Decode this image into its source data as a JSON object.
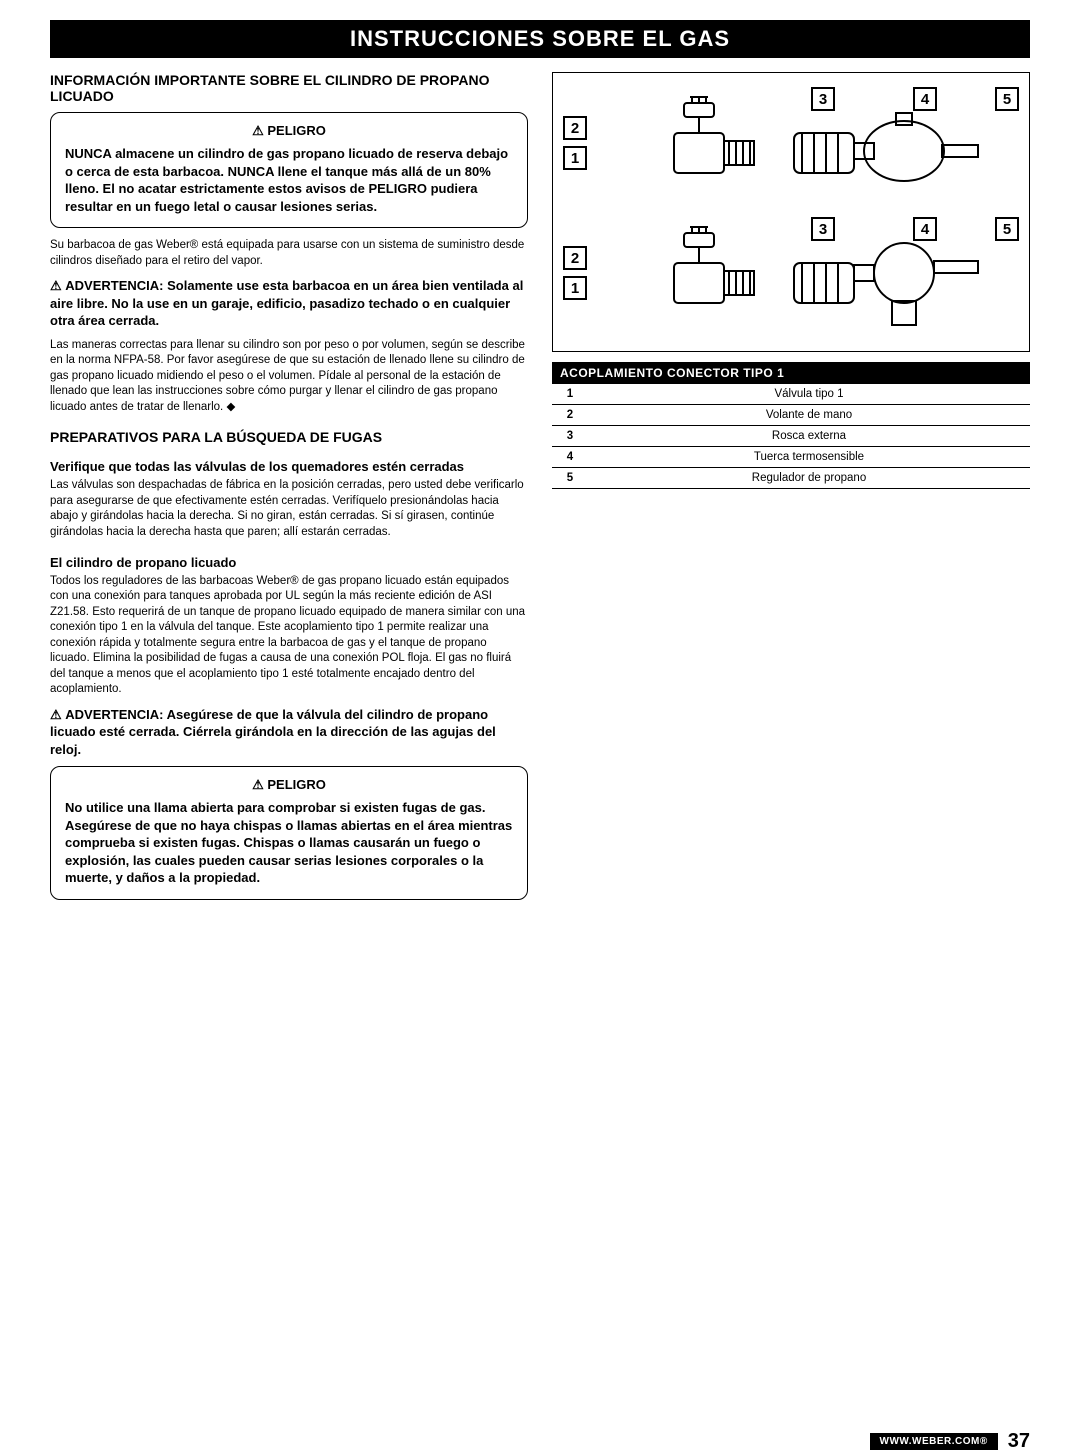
{
  "page": {
    "title": "INSTRUCCIONES SOBRE EL GAS",
    "footer_url": "WWW.WEBER.COM®",
    "page_number": "37"
  },
  "left": {
    "heading1": "INFORMACIÓN IMPORTANTE SOBRE EL CILINDRO DE PROPANO LICUADO",
    "danger1_title": "PELIGRO",
    "danger1_text": "NUNCA almacene un cilindro de gas propano licuado de reserva debajo o cerca de esta barbacoa. NUNCA llene el tanque más allá de un 80% lleno. El no acatar estrictamente estos avisos de PELIGRO pudiera resultar en un fuego letal o causar lesiones serias.",
    "para1": "Su barbacoa de gas Weber® está equipada para usarse con un sistema de suministro desde cilindros diseñado para el retiro del vapor.",
    "warn1": "ADVERTENCIA: Solamente use esta barbacoa en un área bien ventilada al aire libre. No la use en un garaje, edificio, pasadizo techado o en cualquier otra área cerrada.",
    "para2": "Las maneras correctas para llenar su cilindro son por peso o por volumen, según se describe en la norma NFPA-58. Por favor asegúrese de que su estación de llenado llene su cilindro de gas propano licuado midiendo el peso o el volumen. Pídale al personal de la estación de llenado que lean las instrucciones sobre cómo purgar y llenar el cilindro de gas propano licuado antes de tratar de llenarlo. ◆",
    "heading2": "PREPARATIVOS PARA LA BÚSQUEDA DE FUGAS",
    "sub1": "Verifique que todas las válvulas de los quemadores estén cerradas",
    "para3": "Las válvulas son despachadas de fábrica en la posición cerradas, pero usted debe verificarlo para asegurarse de que efectivamente estén cerradas. Verifíquelo presionándolas hacia abajo y girándolas hacia la derecha. Si no giran, están cerradas. Si sí girasen, continúe girándolas hacia la derecha hasta que paren; allí estarán cerradas.",
    "sub2": "El cilindro de propano licuado",
    "para4": "Todos los reguladores de las barbacoas Weber® de gas propano licuado están equipados con una conexión para tanques aprobada por UL según la más reciente edición de ASI Z21.58. Esto requerirá de un tanque de propano licuado equipado de manera similar con una conexión tipo 1 en la válvula del tanque. Este acoplamiento tipo 1 permite realizar una conexión rápida y totalmente segura entre la barbacoa de gas y el tanque de propano licuado. Elimina la posibilidad de fugas a causa de una conexión POL floja. El gas no fluirá del tanque a menos que el acoplamiento tipo 1 esté totalmente encajado dentro del acoplamiento.",
    "warn2": "ADVERTENCIA: Asegúrese de que la válvula del cilindro de propano licuado esté cerrada. Ciérrela girándola en la dirección de las agujas del reloj.",
    "danger2_title": "PELIGRO",
    "danger2_text": "No utilice una llama abierta para comprobar si existen fugas de gas. Asegúrese de que no haya chispas o llamas abiertas en el área mientras comprueba si existen fugas. Chispas o llamas causarán un fuego o explosión, las cuales pueden causar serias lesiones corporales o la muerte, y daños a la propiedad."
  },
  "right": {
    "callouts": [
      "1",
      "2",
      "3",
      "4",
      "5"
    ],
    "table_title": "ACOPLAMIENTO CONECTOR TIPO 1",
    "table_rows": [
      [
        "1",
        "Válvula tipo 1"
      ],
      [
        "2",
        "Volante de mano"
      ],
      [
        "3",
        "Rosca externa"
      ],
      [
        "4",
        "Tuerca termosensible"
      ],
      [
        "5",
        "Regulador de propano"
      ]
    ]
  }
}
